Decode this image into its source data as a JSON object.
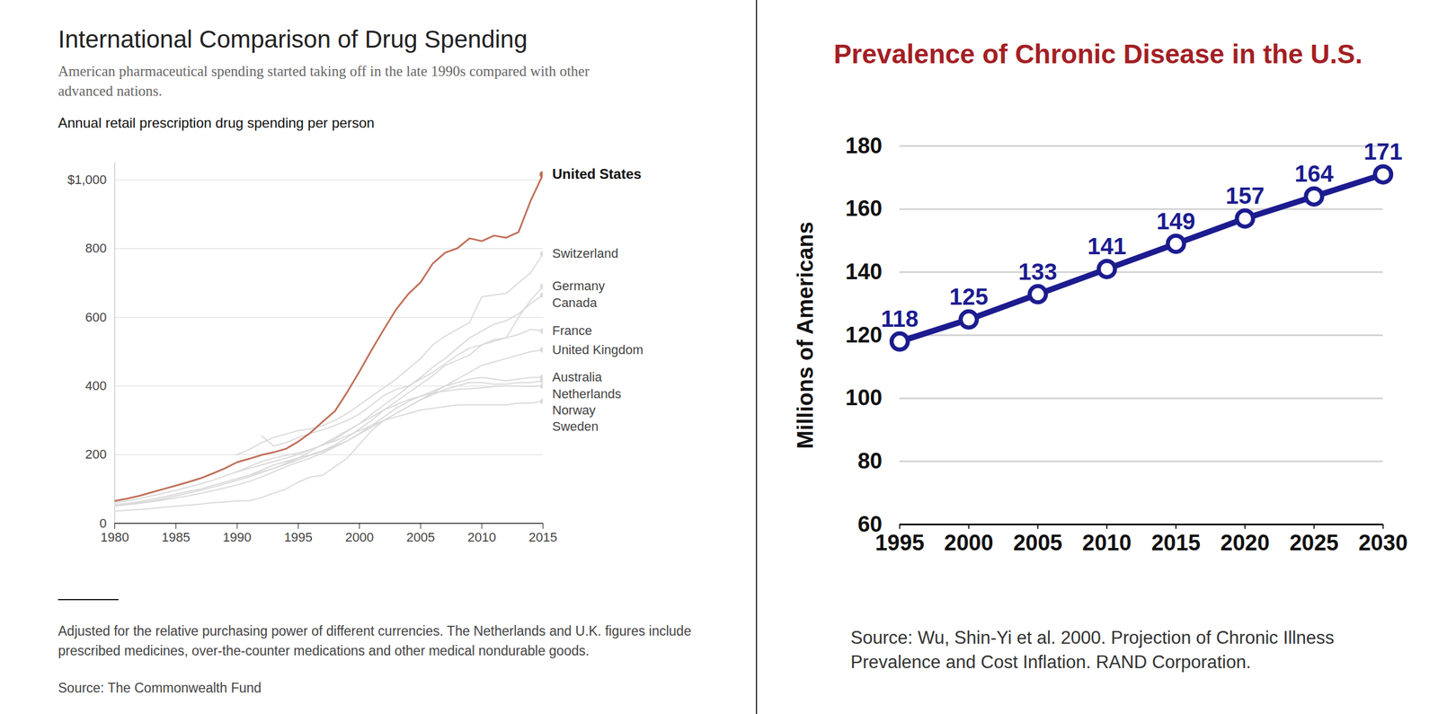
{
  "chart_data": [
    {
      "type": "line",
      "title": "International Comparison of Drug Spending",
      "subtitle": "American pharmaceutical spending started taking off in the late 1990s compared with other advanced nations.",
      "ylabel": "Annual retail prescription drug spending per person",
      "notes": "Adjusted for the relative purchasing power of different currencies. The Netherlands and U.K. figures include prescribed medicines, over-the-counter medications and other medical nondurable goods.",
      "source": "Source: The Commonwealth Fund",
      "x": [
        1980,
        1981,
        1982,
        1983,
        1984,
        1985,
        1986,
        1987,
        1988,
        1989,
        1990,
        1991,
        1992,
        1993,
        1994,
        1995,
        1996,
        1997,
        1998,
        1999,
        2000,
        2001,
        2002,
        2003,
        2004,
        2005,
        2006,
        2007,
        2008,
        2009,
        2010,
        2011,
        2012,
        2013,
        2014,
        2015
      ],
      "xlim": [
        1980,
        2015
      ],
      "xticks": [
        1980,
        1985,
        1990,
        1995,
        2000,
        2005,
        2010,
        2015
      ],
      "ylim": [
        0,
        1050
      ],
      "yticks": [
        0,
        200,
        400,
        600,
        800,
        {
          "value": 1000,
          "label": "$1,000"
        }
      ],
      "grid": true,
      "series": [
        {
          "name": "United States",
          "color": "#c0705a",
          "values": [
            65,
            72,
            80,
            90,
            100,
            110,
            120,
            131,
            145,
            160,
            178,
            188,
            199,
            207,
            217,
            238,
            264,
            296,
            327,
            382,
            442,
            505,
            565,
            623,
            668,
            702,
            757,
            788,
            801,
            830,
            822,
            838,
            832,
            848,
            940,
            1016
          ]
        },
        {
          "name": "Switzerland",
          "color": "#d9d9d9",
          "values": [
            null,
            null,
            null,
            null,
            null,
            null,
            null,
            null,
            null,
            null,
            200,
            215,
            235,
            250,
            260,
            270,
            275,
            285,
            300,
            320,
            345,
            370,
            395,
            420,
            450,
            480,
            520,
            545,
            565,
            585,
            660,
            665,
            670,
            700,
            730,
            785
          ]
        },
        {
          "name": "Germany",
          "color": "#d9d9d9",
          "values": [
            null,
            null,
            null,
            null,
            null,
            null,
            null,
            null,
            null,
            null,
            null,
            null,
            255,
            225,
            235,
            250,
            262,
            272,
            285,
            300,
            318,
            345,
            372,
            390,
            400,
            420,
            440,
            465,
            490,
            510,
            520,
            530,
            540,
            600,
            650,
            690
          ]
        },
        {
          "name": "Canada",
          "color": "#d9d9d9",
          "values": [
            60,
            65,
            72,
            80,
            88,
            96,
            105,
            115,
            125,
            138,
            150,
            165,
            180,
            190,
            198,
            205,
            215,
            228,
            245,
            268,
            290,
            318,
            345,
            370,
            398,
            425,
            455,
            480,
            510,
            540,
            560,
            580,
            590,
            610,
            640,
            665
          ]
        },
        {
          "name": "France",
          "color": "#d9d9d9",
          "values": [
            55,
            58,
            63,
            70,
            77,
            85,
            93,
            100,
            110,
            120,
            130,
            140,
            155,
            170,
            180,
            190,
            200,
            212,
            228,
            250,
            275,
            300,
            330,
            355,
            380,
            405,
            430,
            460,
            475,
            490,
            520,
            535,
            540,
            550,
            565,
            560
          ]
        },
        {
          "name": "United Kingdom",
          "color": "#d9d9d9",
          "values": [
            35,
            38,
            40,
            43,
            47,
            50,
            53,
            56,
            60,
            62,
            65,
            66,
            75,
            88,
            100,
            120,
            135,
            140,
            165,
            190,
            230,
            270,
            300,
            320,
            340,
            360,
            380,
            400,
            420,
            440,
            460,
            470,
            480,
            490,
            500,
            505
          ]
        },
        {
          "name": "Australia",
          "color": "#d9d9d9",
          "values": [
            50,
            54,
            58,
            63,
            68,
            74,
            80,
            87,
            95,
            103,
            112,
            122,
            135,
            150,
            165,
            178,
            190,
            205,
            222,
            240,
            262,
            285,
            310,
            335,
            355,
            370,
            385,
            400,
            410,
            420,
            425,
            420,
            415,
            420,
            425,
            425
          ]
        },
        {
          "name": "Netherlands",
          "color": "#d9d9d9",
          "values": [
            50,
            55,
            60,
            65,
            72,
            80,
            88,
            96,
            105,
            115,
            125,
            135,
            148,
            160,
            172,
            185,
            198,
            210,
            225,
            240,
            260,
            280,
            300,
            320,
            340,
            360,
            375,
            390,
            400,
            410,
            410,
            405,
            405,
            410,
            410,
            415
          ]
        },
        {
          "name": "Norway",
          "color": "#d9d9d9",
          "values": [
            null,
            null,
            null,
            null,
            null,
            null,
            null,
            null,
            null,
            null,
            150,
            160,
            170,
            180,
            190,
            200,
            215,
            228,
            240,
            255,
            270,
            285,
            300,
            310,
            320,
            330,
            335,
            340,
            345,
            345,
            345,
            345,
            345,
            350,
            350,
            355
          ]
        },
        {
          "name": "Sweden",
          "color": "#d9d9d9",
          "values": [
            null,
            null,
            null,
            null,
            null,
            null,
            null,
            null,
            null,
            null,
            130,
            140,
            150,
            160,
            175,
            190,
            210,
            230,
            250,
            270,
            290,
            310,
            330,
            345,
            360,
            370,
            380,
            385,
            390,
            392,
            395,
            398,
            400,
            400,
            398,
            400
          ]
        }
      ]
    },
    {
      "type": "line",
      "title": "Prevalence of Chronic Disease in the U.S.",
      "title_color": "#a31f24",
      "ylabel": "Millions of Americans",
      "source": "Source: Wu, Shin-Yi et al. 2000.  Projection of Chronic Illness Prevalence and Cost Inflation.  RAND Corporation.",
      "x": [
        1995,
        2000,
        2005,
        2010,
        2015,
        2020,
        2025,
        2030
      ],
      "values": [
        118,
        125,
        133,
        141,
        149,
        157,
        164,
        171
      ],
      "color": "#1c1c8f",
      "marker": "circle",
      "data_labels": true,
      "grid": true,
      "xlim": [
        1995,
        2030
      ],
      "xticks": [
        1995,
        2000,
        2005,
        2010,
        2015,
        2020,
        2025,
        2030
      ],
      "ylim": [
        60,
        180
      ],
      "yticks": [
        60,
        80,
        100,
        120,
        140,
        160,
        180
      ]
    }
  ]
}
